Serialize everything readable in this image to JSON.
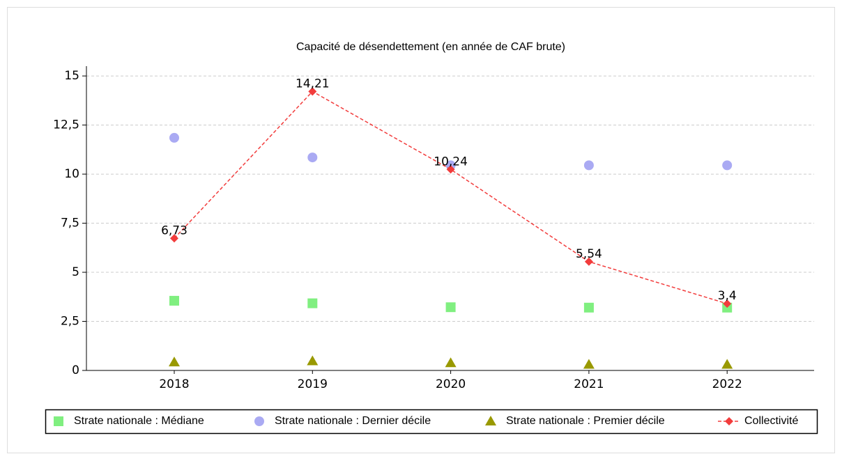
{
  "chart_data": {
    "type": "line",
    "title": "Capacité de désendettement (en année de CAF brute)",
    "categories": [
      "2018",
      "2019",
      "2020",
      "2021",
      "2022"
    ],
    "ylim": [
      0,
      15.5
    ],
    "yticks": [
      0,
      {
        "value": 2.5,
        "label": "2,5"
      },
      5,
      {
        "value": 7.5,
        "label": "7,5"
      },
      10,
      {
        "value": 12.5,
        "label": "12,5"
      },
      15
    ],
    "grid": true,
    "series": [
      {
        "name": "Strate nationale : Médiane",
        "color": "#80ef80",
        "marker": "square",
        "values": [
          3.55,
          3.42,
          3.22,
          3.2,
          3.2
        ]
      },
      {
        "name": "Strate nationale : Dernier décile",
        "color": "#aaaaf3",
        "marker": "circle",
        "values": [
          11.85,
          10.85,
          10.45,
          10.45,
          10.45
        ]
      },
      {
        "name": "Strate nationale : Premier décile",
        "color": "#999900",
        "marker": "triangle",
        "values": [
          0.42,
          0.48,
          0.38,
          0.3,
          0.3
        ]
      },
      {
        "name": "Collectivité",
        "color": "#f23c3c",
        "marker": "diamond",
        "line": "dashed",
        "values": [
          6.73,
          14.21,
          10.24,
          5.54,
          3.4
        ],
        "value_labels": [
          "6,73",
          "14,21",
          "10,24",
          "5,54",
          "3,4"
        ]
      }
    ]
  }
}
